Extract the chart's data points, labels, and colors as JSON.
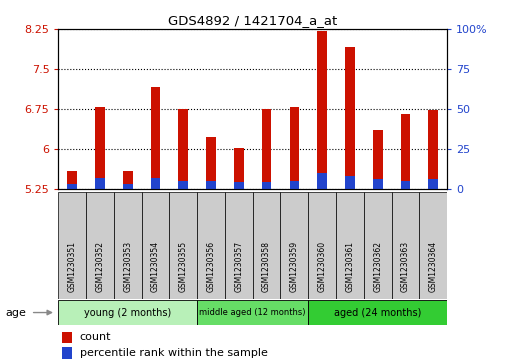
{
  "title": "GDS4892 / 1421704_a_at",
  "samples": [
    "GSM1230351",
    "GSM1230352",
    "GSM1230353",
    "GSM1230354",
    "GSM1230355",
    "GSM1230356",
    "GSM1230357",
    "GSM1230358",
    "GSM1230359",
    "GSM1230360",
    "GSM1230361",
    "GSM1230362",
    "GSM1230363",
    "GSM1230364"
  ],
  "count_values": [
    5.58,
    6.78,
    5.58,
    7.17,
    6.75,
    6.22,
    6.02,
    6.75,
    6.78,
    8.22,
    7.92,
    6.35,
    6.65,
    6.72
  ],
  "percentile_values": [
    3,
    7,
    3,
    7,
    5,
    5,
    4,
    4,
    5,
    10,
    8,
    6,
    5,
    6
  ],
  "ylim_left": [
    5.25,
    8.25
  ],
  "ylim_right": [
    0,
    100
  ],
  "yticks_left": [
    5.25,
    6.0,
    6.75,
    7.5,
    8.25
  ],
  "yticks_right": [
    0,
    25,
    50,
    75,
    100
  ],
  "ytick_labels_left": [
    "5.25",
    "6",
    "6.75",
    "7.5",
    "8.25"
  ],
  "ytick_labels_right": [
    "0",
    "25",
    "50",
    "75",
    "100%"
  ],
  "groups": [
    {
      "label": "young (2 months)",
      "start": 0,
      "end": 5,
      "color": "#B8F0B8"
    },
    {
      "label": "middle aged (12 months)",
      "start": 5,
      "end": 9,
      "color": "#66DD66"
    },
    {
      "label": "aged (24 months)",
      "start": 9,
      "end": 14,
      "color": "#33CC33"
    }
  ],
  "bar_width": 0.35,
  "count_color": "#CC1100",
  "percentile_color": "#2244CC",
  "left_axis_color": "#CC1100",
  "right_axis_color": "#2244CC",
  "grid_color": "#000000",
  "legend_items": [
    "count",
    "percentile rank within the sample"
  ],
  "legend_colors": [
    "#CC1100",
    "#2244CC"
  ],
  "sample_box_color": "#CCCCCC",
  "age_arrow_color": "#777777"
}
